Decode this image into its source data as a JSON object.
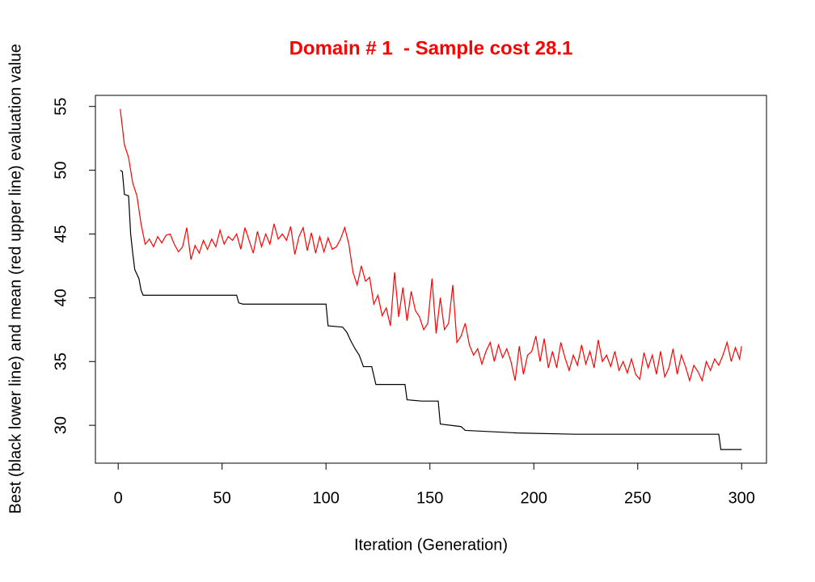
{
  "chart_data": {
    "type": "line",
    "title": "Domain # 1  - Sample cost 28.1",
    "x_label": "Iteration (Generation)",
    "y_label": "Best (black lower line) and mean (red upper line) evaluation value",
    "xlim": [
      -10.96,
      311.96
    ],
    "ylim": [
      27.03,
      55.87
    ],
    "xticks": [
      0,
      50,
      100,
      150,
      200,
      250,
      300
    ],
    "yticks": [
      30,
      35,
      40,
      45,
      50,
      55
    ],
    "grid": false,
    "series": [
      {
        "color": "#000000",
        "x": [
          1,
          2,
          3,
          5,
          6,
          7,
          8,
          10,
          11,
          12,
          57,
          58,
          60,
          100,
          101,
          108,
          110,
          112,
          114,
          116,
          118,
          122,
          124,
          138,
          139,
          146,
          154,
          155,
          165,
          167,
          192,
          220,
          289,
          290,
          300
        ],
        "values": [
          50,
          49.9,
          48.1,
          48,
          45,
          43.5,
          42.2,
          41.5,
          40.6,
          40.2,
          40.2,
          39.6,
          39.5,
          39.5,
          37.8,
          37.7,
          37.3,
          36.6,
          36,
          35.5,
          34.6,
          34.6,
          33.2,
          33.2,
          32,
          31.9,
          31.9,
          30.1,
          29.9,
          29.6,
          29.4,
          29.3,
          29.3,
          28.1,
          28.1
        ]
      },
      {
        "color": "#ff0000",
        "x": [
          1,
          3,
          5,
          7,
          9,
          11,
          13,
          15,
          17,
          19,
          21,
          23,
          25,
          27,
          29,
          31,
          33,
          35,
          37,
          39,
          41,
          43,
          45,
          47,
          49,
          51,
          53,
          55,
          57,
          59,
          61,
          63,
          65,
          67,
          69,
          71,
          73,
          75,
          77,
          79,
          81,
          83,
          85,
          87,
          89,
          91,
          93,
          95,
          97,
          99,
          101,
          103,
          105,
          107,
          109,
          111,
          113,
          115,
          117,
          119,
          121,
          123,
          125,
          127,
          129,
          131,
          133,
          135,
          137,
          139,
          141,
          143,
          145,
          147,
          149,
          151,
          153,
          155,
          157,
          159,
          161,
          163,
          165,
          167,
          169,
          171,
          173,
          175,
          177,
          179,
          181,
          183,
          185,
          187,
          189,
          191,
          193,
          195,
          197,
          199,
          201,
          203,
          205,
          207,
          209,
          211,
          213,
          215,
          217,
          219,
          221,
          223,
          225,
          227,
          229,
          231,
          233,
          235,
          237,
          239,
          241,
          243,
          245,
          247,
          249,
          251,
          253,
          255,
          257,
          259,
          261,
          263,
          265,
          267,
          269,
          271,
          273,
          275,
          277,
          279,
          281,
          283,
          285,
          287,
          289,
          291,
          293,
          295,
          297,
          299,
          300
        ],
        "values": [
          54.8,
          52,
          51,
          49,
          48,
          45.8,
          44.2,
          44.6,
          44,
          44.8,
          44.3,
          44.9,
          45,
          44.2,
          43.6,
          44,
          45.5,
          43,
          44.1,
          43.5,
          44.5,
          43.8,
          44.6,
          44,
          45.3,
          44.2,
          44.8,
          44.5,
          45,
          43.8,
          45.5,
          44.5,
          43.5,
          45.2,
          44,
          45,
          44.2,
          45.8,
          44.6,
          45,
          44.5,
          45.6,
          43.4,
          44.8,
          45.5,
          43.7,
          45.1,
          43.5,
          44.8,
          43.6,
          44.7,
          43.8,
          44,
          44.6,
          45.5,
          44.2,
          42,
          41,
          42.5,
          41.3,
          41.6,
          39.5,
          40.2,
          38.6,
          39.2,
          37.8,
          42,
          38.5,
          40.8,
          38.2,
          40.5,
          39,
          38.5,
          37.5,
          38,
          41.5,
          37.2,
          40,
          37.5,
          38,
          41,
          36.5,
          37,
          38,
          36.3,
          35.5,
          36,
          34.8,
          35.8,
          36.5,
          35,
          36.3,
          35.3,
          36,
          35,
          33.5,
          36.2,
          34,
          35.5,
          35.8,
          37,
          35,
          36.8,
          34.5,
          35.8,
          34.5,
          36.5,
          35.3,
          34.3,
          35.5,
          34.7,
          36.3,
          34.8,
          35.8,
          34.5,
          36.7,
          35,
          35.5,
          34.6,
          35.8,
          34.3,
          35,
          34.1,
          35.2,
          34,
          33.6,
          35.7,
          34.5,
          35.5,
          34,
          35.8,
          33.8,
          34.5,
          36,
          34,
          35.5,
          34.6,
          33.5,
          34.7,
          34.2,
          33.5,
          35,
          34.3,
          35.2,
          34.7,
          35.5,
          36.5,
          35,
          36.1,
          35.2,
          36.2
        ]
      }
    ]
  }
}
